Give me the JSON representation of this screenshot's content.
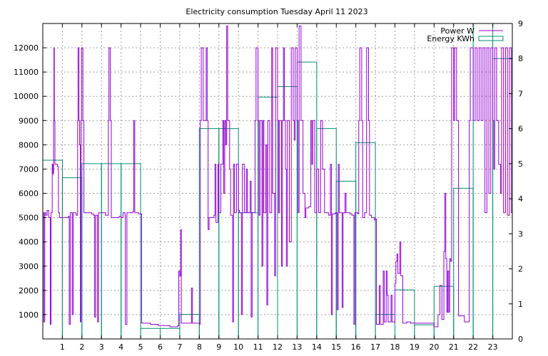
{
  "chart_data": {
    "type": "line",
    "title": "Electricity consumption Tuesday April 11 2023",
    "xlabel": "",
    "ylabel": "",
    "y2label": "",
    "xlim": [
      0,
      24
    ],
    "ylim": [
      0,
      13000
    ],
    "y2lim": [
      0,
      9
    ],
    "x_ticks": [
      1,
      2,
      3,
      4,
      5,
      6,
      7,
      8,
      9,
      10,
      11,
      12,
      13,
      14,
      15,
      16,
      17,
      18,
      19,
      20,
      21,
      22,
      23
    ],
    "y_ticks": [
      1000,
      2000,
      3000,
      4000,
      5000,
      6000,
      7000,
      8000,
      9000,
      10000,
      11000,
      12000
    ],
    "y2_ticks": [
      0,
      1,
      2,
      3,
      4,
      5,
      6,
      7,
      8,
      9
    ],
    "grid": true,
    "legend_position": "top-right",
    "series": [
      {
        "name": "Power W",
        "axis": "y",
        "style": "step",
        "color": "#9400d3",
        "points": [
          [
            0.0,
            5200
          ],
          [
            0.05,
            700
          ],
          [
            0.1,
            5200
          ],
          [
            0.15,
            5100
          ],
          [
            0.22,
            5300
          ],
          [
            0.3,
            5000
          ],
          [
            0.38,
            600
          ],
          [
            0.42,
            5200
          ],
          [
            0.48,
            7200
          ],
          [
            0.52,
            6800
          ],
          [
            0.55,
            9000
          ],
          [
            0.57,
            12000
          ],
          [
            0.59,
            9000
          ],
          [
            0.62,
            7200
          ],
          [
            0.75,
            7100
          ],
          [
            0.8,
            5200
          ],
          [
            0.85,
            5000
          ],
          [
            1.3,
            5050
          ],
          [
            1.35,
            600
          ],
          [
            1.4,
            5200
          ],
          [
            1.5,
            1000
          ],
          [
            1.55,
            5200
          ],
          [
            1.7,
            5100
          ],
          [
            1.78,
            9000
          ],
          [
            1.8,
            12000
          ],
          [
            1.85,
            9000
          ],
          [
            1.88,
            8000
          ],
          [
            1.92,
            700
          ],
          [
            1.95,
            9000
          ],
          [
            1.98,
            12000
          ],
          [
            2.05,
            9000
          ],
          [
            2.1,
            5200
          ],
          [
            2.5,
            5150
          ],
          [
            2.6,
            5100
          ],
          [
            2.65,
            900
          ],
          [
            2.7,
            5100
          ],
          [
            2.8,
            700
          ],
          [
            2.85,
            5200
          ],
          [
            3.2,
            5100
          ],
          [
            3.35,
            9000
          ],
          [
            3.38,
            12000
          ],
          [
            3.45,
            9000
          ],
          [
            3.5,
            5000
          ],
          [
            3.9,
            5050
          ],
          [
            4.0,
            5000
          ],
          [
            4.1,
            5200
          ],
          [
            4.2,
            5100
          ],
          [
            4.22,
            600
          ],
          [
            4.3,
            5200
          ],
          [
            4.6,
            5250
          ],
          [
            4.65,
            9000
          ],
          [
            4.7,
            5200
          ],
          [
            4.9,
            5150
          ],
          [
            5.0,
            5150
          ],
          [
            5.05,
            650
          ],
          [
            5.5,
            600
          ],
          [
            5.9,
            550
          ],
          [
            6.5,
            500
          ],
          [
            6.9,
            550
          ],
          [
            6.95,
            2800
          ],
          [
            7.0,
            2600
          ],
          [
            7.05,
            4500
          ],
          [
            7.08,
            650
          ],
          [
            7.4,
            650
          ],
          [
            7.6,
            2100
          ],
          [
            7.65,
            650
          ],
          [
            8.0,
            600
          ],
          [
            8.05,
            9000
          ],
          [
            8.1,
            12000
          ],
          [
            8.2,
            9000
          ],
          [
            8.35,
            12000
          ],
          [
            8.4,
            9000
          ],
          [
            8.45,
            4500
          ],
          [
            8.5,
            5000
          ],
          [
            8.75,
            5100
          ],
          [
            8.8,
            7200
          ],
          [
            8.85,
            4800
          ],
          [
            8.95,
            7200
          ],
          [
            9.0,
            5200
          ],
          [
            9.1,
            7200
          ],
          [
            9.2,
            9000
          ],
          [
            9.25,
            6000
          ],
          [
            9.3,
            9000
          ],
          [
            9.35,
            8000
          ],
          [
            9.4,
            12900
          ],
          [
            9.45,
            9000
          ],
          [
            9.55,
            7000
          ],
          [
            9.6,
            5100
          ],
          [
            9.7,
            700
          ],
          [
            9.75,
            7200
          ],
          [
            9.8,
            5200
          ],
          [
            9.9,
            7200
          ],
          [
            10.0,
            5300
          ],
          [
            10.05,
            5200
          ],
          [
            10.15,
            1000
          ],
          [
            10.2,
            7200
          ],
          [
            10.3,
            5200
          ],
          [
            10.4,
            7000
          ],
          [
            10.45,
            5200
          ],
          [
            10.6,
            6500
          ],
          [
            10.65,
            900
          ],
          [
            10.7,
            5200
          ],
          [
            10.85,
            9000
          ],
          [
            10.9,
            12000
          ],
          [
            11.0,
            9000
          ],
          [
            11.05,
            5100
          ],
          [
            11.1,
            9000
          ],
          [
            11.2,
            3000
          ],
          [
            11.25,
            9000
          ],
          [
            11.3,
            5200
          ],
          [
            11.4,
            8000
          ],
          [
            11.45,
            1400
          ],
          [
            11.5,
            9000
          ],
          [
            11.6,
            5200
          ],
          [
            11.7,
            12000
          ],
          [
            11.75,
            6000
          ],
          [
            11.85,
            2600
          ],
          [
            11.9,
            12000
          ],
          [
            12.0,
            9000
          ],
          [
            12.05,
            5200
          ],
          [
            12.1,
            9000
          ],
          [
            12.2,
            3000
          ],
          [
            12.25,
            9000
          ],
          [
            12.3,
            12000
          ],
          [
            12.35,
            9000
          ],
          [
            12.4,
            7000
          ],
          [
            12.45,
            3000
          ],
          [
            12.5,
            9000
          ],
          [
            12.6,
            4000
          ],
          [
            12.7,
            12000
          ],
          [
            12.8,
            9000
          ],
          [
            12.85,
            8200
          ],
          [
            12.9,
            12000
          ],
          [
            13.0,
            9000
          ],
          [
            13.05,
            5200
          ],
          [
            13.1,
            12900
          ],
          [
            13.2,
            9000
          ],
          [
            13.3,
            6000
          ],
          [
            13.4,
            5000
          ],
          [
            13.45,
            5400
          ],
          [
            13.6,
            5450
          ],
          [
            13.7,
            9000
          ],
          [
            13.75,
            7200
          ],
          [
            13.8,
            9000
          ],
          [
            13.9,
            5200
          ],
          [
            14.0,
            7000
          ],
          [
            14.1,
            5200
          ],
          [
            14.2,
            9000
          ],
          [
            14.3,
            7000
          ],
          [
            14.4,
            5200
          ],
          [
            14.6,
            5100
          ],
          [
            14.7,
            7200
          ],
          [
            14.75,
            1000
          ],
          [
            14.8,
            5150
          ],
          [
            14.95,
            5200
          ],
          [
            15.05,
            1200
          ],
          [
            15.1,
            7200
          ],
          [
            15.15,
            5200
          ],
          [
            15.3,
            1300
          ],
          [
            15.35,
            5200
          ],
          [
            15.45,
            6000
          ],
          [
            15.5,
            5200
          ],
          [
            15.7,
            5150
          ],
          [
            15.8,
            5100
          ],
          [
            15.9,
            600
          ],
          [
            15.95,
            5200
          ],
          [
            16.1,
            5150
          ],
          [
            16.15,
            9000
          ],
          [
            16.2,
            12000
          ],
          [
            16.3,
            9000
          ],
          [
            16.35,
            5000
          ],
          [
            16.45,
            5200
          ],
          [
            16.55,
            12000
          ],
          [
            16.65,
            9000
          ],
          [
            16.7,
            5100
          ],
          [
            16.8,
            5000
          ],
          [
            16.95,
            4900
          ],
          [
            17.0,
            4950
          ],
          [
            17.05,
            600
          ],
          [
            17.2,
            2200
          ],
          [
            17.25,
            600
          ],
          [
            17.4,
            2800
          ],
          [
            17.45,
            700
          ],
          [
            17.55,
            2800
          ],
          [
            17.6,
            1800
          ],
          [
            17.65,
            700
          ],
          [
            17.8,
            1800
          ],
          [
            17.85,
            700
          ],
          [
            18.0,
            2300
          ],
          [
            18.05,
            3200
          ],
          [
            18.1,
            3500
          ],
          [
            18.15,
            2700
          ],
          [
            18.25,
            4000
          ],
          [
            18.3,
            2600
          ],
          [
            18.4,
            650
          ],
          [
            18.6,
            700
          ],
          [
            18.8,
            650
          ],
          [
            19.0,
            650
          ],
          [
            19.5,
            650
          ],
          [
            20.0,
            500
          ],
          [
            20.2,
            1000
          ],
          [
            20.3,
            2200
          ],
          [
            20.4,
            800
          ],
          [
            20.5,
            3600
          ],
          [
            20.55,
            6000
          ],
          [
            20.6,
            3300
          ],
          [
            20.65,
            1100
          ],
          [
            20.7,
            2800
          ],
          [
            20.75,
            1100
          ],
          [
            20.8,
            3300
          ],
          [
            20.85,
            3200
          ],
          [
            20.9,
            12000
          ],
          [
            21.0,
            9000
          ],
          [
            21.05,
            12000
          ],
          [
            21.15,
            9000
          ],
          [
            21.25,
            950
          ],
          [
            21.5,
            950
          ],
          [
            21.55,
            700
          ],
          [
            21.7,
            700
          ],
          [
            21.8,
            9000
          ],
          [
            21.85,
            12000
          ],
          [
            22.0,
            9000
          ],
          [
            22.1,
            12000
          ],
          [
            22.2,
            9000
          ],
          [
            22.3,
            12000
          ],
          [
            22.4,
            9000
          ],
          [
            22.5,
            12000
          ],
          [
            22.6,
            5200
          ],
          [
            22.7,
            12000
          ],
          [
            22.8,
            6000
          ],
          [
            22.9,
            12000
          ],
          [
            23.0,
            9000
          ],
          [
            23.05,
            7000
          ],
          [
            23.1,
            12000
          ],
          [
            23.2,
            9000
          ],
          [
            23.3,
            7200
          ],
          [
            23.4,
            6000
          ],
          [
            23.45,
            12000
          ],
          [
            23.55,
            5200
          ],
          [
            23.65,
            12000
          ],
          [
            23.75,
            5100
          ],
          [
            23.85,
            12000
          ],
          [
            23.95,
            5200
          ]
        ]
      },
      {
        "name": "Energy KWh",
        "axis": "y2",
        "style": "bars",
        "color": "#009070",
        "values": [
          5.1,
          4.6,
          5.0,
          5.0,
          5.0,
          0.3,
          0.3,
          0.7,
          6.0,
          6.0,
          3.6,
          6.9,
          7.2,
          7.9,
          6.0,
          4.5,
          5.6,
          0.7,
          1.4,
          0.4,
          1.5,
          4.3,
          9.0,
          8.0
        ]
      }
    ]
  }
}
